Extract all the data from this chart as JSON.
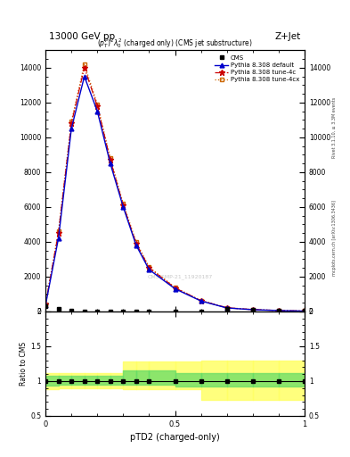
{
  "title_top": "13000 GeV pp",
  "title_right": "Z+Jet",
  "plot_title": "$(p_T^P)^2\\lambda_0^2$ (charged only) (CMS jet substructure)",
  "xlabel": "pTD2 (charged-only)",
  "watermark": "CMS-SMP-21_11920187",
  "right_label_top": "Rivet 3.1.10, ≥ 3.3M events",
  "right_label_bot": "mcplots.cern.ch [arXiv:1306.3436]",
  "x_data": [
    0.0,
    0.05,
    0.1,
    0.15,
    0.2,
    0.25,
    0.3,
    0.35,
    0.4,
    0.5,
    0.6,
    0.7,
    0.8,
    0.9,
    1.0
  ],
  "cms_y": [
    300,
    150,
    50,
    0,
    0,
    0,
    0,
    0,
    0,
    0,
    0,
    150,
    100,
    50,
    30
  ],
  "pythia_default_y": [
    350,
    4200,
    10500,
    13500,
    11500,
    8500,
    6000,
    3800,
    2400,
    1300,
    600,
    200,
    100,
    50,
    20
  ],
  "pythia_4c_y": [
    400,
    4500,
    10800,
    14000,
    11800,
    8700,
    6100,
    3900,
    2500,
    1350,
    620,
    210,
    105,
    52,
    22
  ],
  "pythia_4cx_y": [
    410,
    4600,
    10900,
    14200,
    11900,
    8800,
    6200,
    4000,
    2550,
    1380,
    630,
    215,
    108,
    53,
    23
  ],
  "ylim_main": [
    0,
    15000
  ],
  "ylim_ratio": [
    0.5,
    2.0
  ],
  "xlim": [
    0.0,
    1.0
  ],
  "yticks_main": [
    0,
    2000,
    4000,
    6000,
    8000,
    10000,
    12000,
    14000
  ],
  "ratio_bins_x": [
    0.0,
    0.05,
    0.1,
    0.15,
    0.2,
    0.25,
    0.3,
    0.35,
    0.4,
    0.5,
    0.6,
    0.7,
    0.8,
    0.9,
    1.0
  ],
  "ratio_yellow_low": [
    0.88,
    0.9,
    0.9,
    0.9,
    0.9,
    0.9,
    0.88,
    0.88,
    0.88,
    0.88,
    0.73,
    0.73,
    0.73,
    0.73,
    0.73
  ],
  "ratio_yellow_high": [
    1.12,
    1.12,
    1.12,
    1.12,
    1.12,
    1.12,
    1.28,
    1.28,
    1.28,
    1.28,
    1.3,
    1.3,
    1.3,
    1.3,
    1.3
  ],
  "ratio_green_low": [
    0.93,
    0.95,
    0.95,
    0.95,
    0.95,
    0.95,
    0.95,
    0.95,
    0.95,
    0.92,
    0.92,
    0.92,
    0.92,
    0.92,
    0.92
  ],
  "ratio_green_high": [
    1.07,
    1.07,
    1.07,
    1.07,
    1.07,
    1.07,
    1.15,
    1.15,
    1.15,
    1.12,
    1.12,
    1.12,
    1.12,
    1.12,
    1.12
  ],
  "color_cms": "#000000",
  "color_default": "#0000cc",
  "color_4c": "#cc0000",
  "color_4cx": "#cc6600",
  "bg_color": "#ffffff"
}
